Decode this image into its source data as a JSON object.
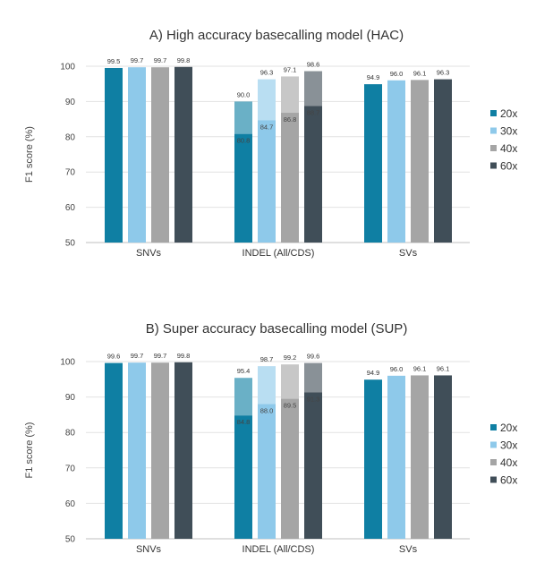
{
  "chart_data": [
    {
      "type": "bar",
      "title": "A) High accuracy basecalling model (HAC)",
      "ylabel": "F1 score (%)",
      "xlabel": "",
      "ylim": [
        50,
        100
      ],
      "yticks": [
        50,
        60,
        70,
        80,
        90,
        100
      ],
      "grid": true,
      "legend_position": "right",
      "categories": [
        "SNVs",
        "INDEL (All/CDS)",
        "SVs"
      ],
      "series": [
        {
          "name": "20x",
          "color": "#0f7fa3",
          "values": [
            99.5,
            90.0,
            94.9
          ],
          "inner_values": [
            null,
            80.8,
            null
          ]
        },
        {
          "name": "30x",
          "color": "#8ec9ea",
          "values": [
            99.7,
            96.3,
            96.0
          ],
          "inner_values": [
            null,
            84.7,
            null
          ]
        },
        {
          "name": "40x",
          "color": "#a5a5a5",
          "values": [
            99.7,
            97.1,
            96.1
          ],
          "inner_values": [
            null,
            86.8,
            null
          ]
        },
        {
          "name": "60x",
          "color": "#404e58",
          "values": [
            99.8,
            98.6,
            96.3
          ],
          "inner_values": [
            null,
            88.7,
            null
          ]
        }
      ]
    },
    {
      "type": "bar",
      "title": "B) Super accuracy basecalling model (SUP)",
      "ylabel": "F1 score (%)",
      "xlabel": "",
      "ylim": [
        50,
        100
      ],
      "yticks": [
        50,
        60,
        70,
        80,
        90,
        100
      ],
      "grid": true,
      "legend_position": "right",
      "categories": [
        "SNVs",
        "INDEL (All/CDS)",
        "SVs"
      ],
      "series": [
        {
          "name": "20x",
          "color": "#0f7fa3",
          "values": [
            99.6,
            95.4,
            94.9
          ],
          "inner_values": [
            null,
            84.8,
            null
          ]
        },
        {
          "name": "30x",
          "color": "#8ec9ea",
          "values": [
            99.7,
            98.7,
            96.0
          ],
          "inner_values": [
            null,
            88.0,
            null
          ]
        },
        {
          "name": "40x",
          "color": "#a5a5a5",
          "values": [
            99.7,
            99.2,
            96.1
          ],
          "inner_values": [
            null,
            89.5,
            null
          ]
        },
        {
          "name": "60x",
          "color": "#404e58",
          "values": [
            99.8,
            99.6,
            96.1
          ],
          "inner_values": [
            null,
            91.3,
            null
          ]
        }
      ]
    }
  ]
}
